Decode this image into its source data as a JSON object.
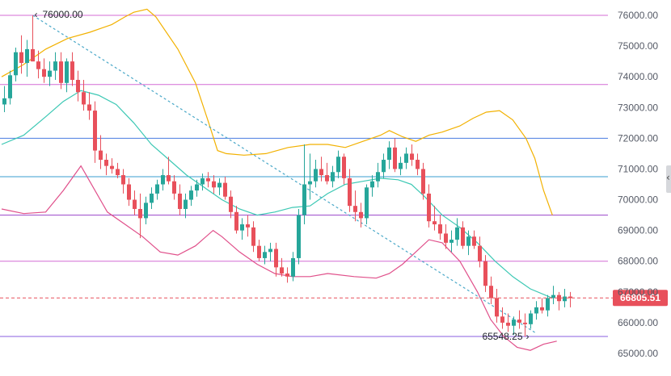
{
  "chart_data": {
    "type": "candlestick",
    "y_axis": {
      "position": "right",
      "ylim": [
        64700,
        76300
      ],
      "ticks": [
        65000,
        66000,
        67000,
        68000,
        69000,
        70000,
        71000,
        72000,
        73000,
        74000,
        75000,
        76000
      ],
      "tick_labels": [
        "65000.00",
        "66000.00",
        "67000.00",
        "68000.00",
        "69000.00",
        "70000.00",
        "71000.00",
        "72000.00",
        "73000.00",
        "74000.00",
        "75000.00",
        "76000.00"
      ]
    },
    "horizontal_levels": [
      {
        "value": 76000,
        "color": "#d46bd6"
      },
      {
        "value": 73750,
        "color": "#d46bd6"
      },
      {
        "value": 72000,
        "color": "#4a7be0"
      },
      {
        "value": 70750,
        "color": "#3a9ed0"
      },
      {
        "value": 69500,
        "color": "#9a45c9"
      },
      {
        "value": 68000,
        "color": "#d46bd6"
      },
      {
        "value": 65550,
        "color": "#8a5ee0"
      }
    ],
    "current_price": {
      "value": 66805.51,
      "label": "66805.51",
      "color": "#e8505b"
    },
    "annotations": [
      {
        "label": "76000.00",
        "value": 76000,
        "candle_index": 5
      },
      {
        "label": "65548.25",
        "value": 65548.25,
        "candle_index": 93
      }
    ],
    "trendline": {
      "from_index": 5,
      "from_value": 76000,
      "to_index": 94,
      "to_value": 65650,
      "color": "#4aa8c8"
    },
    "candle_colors": {
      "up": "#26a69a",
      "down": "#e8505b"
    },
    "candles": [
      [
        73100,
        73700,
        72850,
        73300
      ],
      [
        73300,
        74200,
        73100,
        74050
      ],
      [
        74050,
        74950,
        73850,
        74800
      ],
      [
        74800,
        75350,
        74100,
        74450
      ],
      [
        74450,
        75200,
        74000,
        74900
      ],
      [
        74900,
        76000,
        74500,
        74500
      ],
      [
        74500,
        74850,
        73950,
        74250
      ],
      [
        74250,
        74600,
        73800,
        74000
      ],
      [
        74000,
        74500,
        73700,
        74200
      ],
      [
        74200,
        74800,
        73900,
        74500
      ],
      [
        74500,
        74800,
        73600,
        73800
      ],
      [
        73800,
        74600,
        73500,
        74500
      ],
      [
        74500,
        74800,
        73700,
        73900
      ],
      [
        73900,
        74200,
        73200,
        73500
      ],
      [
        73500,
        73900,
        72900,
        73100
      ],
      [
        73100,
        73500,
        72600,
        72900
      ],
      [
        72900,
        73200,
        71200,
        71600
      ],
      [
        71600,
        72100,
        71000,
        71300
      ],
      [
        71300,
        71500,
        70800,
        71100
      ],
      [
        71100,
        71350,
        70850,
        71000
      ],
      [
        71000,
        71200,
        70700,
        70800
      ],
      [
        70800,
        71000,
        70200,
        70500
      ],
      [
        70500,
        70700,
        69800,
        70000
      ],
      [
        70000,
        70300,
        69500,
        69700
      ],
      [
        69700,
        70200,
        68750,
        69400
      ],
      [
        69400,
        70100,
        69200,
        69900
      ],
      [
        69900,
        70400,
        69700,
        70200
      ],
      [
        70200,
        70650,
        70000,
        70500
      ],
      [
        70500,
        71000,
        70300,
        70800
      ],
      [
        70800,
        71400,
        70500,
        70600
      ],
      [
        70600,
        70800,
        70000,
        70200
      ],
      [
        70200,
        70500,
        69500,
        69700
      ],
      [
        69700,
        70200,
        69400,
        70000
      ],
      [
        70000,
        70450,
        69800,
        70300
      ],
      [
        70300,
        70650,
        70100,
        70500
      ],
      [
        70500,
        70850,
        70300,
        70700
      ],
      [
        70700,
        70900,
        70400,
        70600
      ],
      [
        70600,
        70800,
        70200,
        70400
      ],
      [
        70400,
        70700,
        70150,
        70550
      ],
      [
        70550,
        70750,
        70000,
        70100
      ],
      [
        70100,
        70300,
        69400,
        69600
      ],
      [
        69600,
        69800,
        68900,
        69000
      ],
      [
        69000,
        69400,
        68700,
        69200
      ],
      [
        69200,
        69500,
        68800,
        69100
      ],
      [
        69100,
        69300,
        68300,
        68500
      ],
      [
        68500,
        68700,
        68000,
        68100
      ],
      [
        68100,
        68500,
        67900,
        68300
      ],
      [
        68300,
        68600,
        68000,
        68400
      ],
      [
        68400,
        68600,
        67500,
        67800
      ],
      [
        67800,
        68100,
        67500,
        67600
      ],
      [
        67600,
        67800,
        67300,
        67500
      ],
      [
        67500,
        68300,
        67350,
        68100
      ],
      [
        68100,
        69700,
        67900,
        69500
      ],
      [
        69500,
        71800,
        69200,
        70500
      ],
      [
        70500,
        71500,
        70000,
        70600
      ],
      [
        70600,
        71300,
        70400,
        71000
      ],
      [
        71000,
        71400,
        70600,
        70800
      ],
      [
        70800,
        71200,
        70500,
        70600
      ],
      [
        70600,
        71100,
        70400,
        70900
      ],
      [
        70900,
        71600,
        70700,
        71400
      ],
      [
        71400,
        71500,
        70500,
        70700
      ],
      [
        70700,
        71000,
        69600,
        69800
      ],
      [
        69800,
        70300,
        69300,
        69600
      ],
      [
        69600,
        69900,
        69100,
        69400
      ],
      [
        69400,
        70500,
        69200,
        70400
      ],
      [
        70400,
        70800,
        70100,
        70600
      ],
      [
        70600,
        71200,
        70400,
        70900
      ],
      [
        70900,
        71500,
        70700,
        71300
      ],
      [
        71300,
        71900,
        71000,
        71700
      ],
      [
        71700,
        72000,
        70900,
        71000
      ],
      [
        71000,
        71400,
        70800,
        71200
      ],
      [
        71200,
        71700,
        71000,
        71500
      ],
      [
        71500,
        71800,
        71100,
        71300
      ],
      [
        71300,
        71500,
        70800,
        71000
      ],
      [
        71000,
        71200,
        70000,
        70200
      ],
      [
        70200,
        70500,
        69100,
        69300
      ],
      [
        69300,
        69800,
        69000,
        69200
      ],
      [
        69200,
        69500,
        68700,
        68900
      ],
      [
        68900,
        69200,
        68400,
        68600
      ],
      [
        68600,
        69000,
        68300,
        68700
      ],
      [
        68700,
        69400,
        68500,
        69100
      ],
      [
        69100,
        69300,
        68400,
        68500
      ],
      [
        68500,
        69000,
        68200,
        68800
      ],
      [
        68800,
        69000,
        68400,
        68500
      ],
      [
        68500,
        68800,
        67800,
        68000
      ],
      [
        68000,
        68200,
        67000,
        67200
      ],
      [
        67200,
        67500,
        66600,
        66800
      ],
      [
        66800,
        67100,
        66000,
        66200
      ],
      [
        66200,
        66500,
        65800,
        66000
      ],
      [
        66000,
        66300,
        65700,
        65900
      ],
      [
        65900,
        66200,
        65600,
        66100
      ],
      [
        66100,
        66400,
        65800,
        66000
      ],
      [
        66000,
        66300,
        65550,
        65950
      ],
      [
        65950,
        66400,
        65800,
        66300
      ],
      [
        66300,
        66700,
        66100,
        66500
      ],
      [
        66500,
        66800,
        66300,
        66400
      ],
      [
        66400,
        66900,
        66200,
        66800
      ],
      [
        66800,
        67200,
        66600,
        66900
      ],
      [
        66900,
        67000,
        66400,
        66700
      ],
      [
        66700,
        67100,
        66500,
        66850
      ],
      [
        66850,
        67000,
        66500,
        66800
      ]
    ],
    "bollinger": {
      "upper_color": "#f2b100",
      "middle_color": "#3cc8b4",
      "lower_color": "#e04f8a",
      "upper": [
        [
          0,
          74000
        ],
        [
          5,
          74400
        ],
        [
          10,
          74900
        ],
        [
          15,
          75250
        ],
        [
          20,
          75450
        ],
        [
          25,
          75700
        ],
        [
          28,
          75950
        ],
        [
          30,
          76100
        ],
        [
          33,
          76200
        ],
        [
          35,
          75950
        ],
        [
          40,
          74900
        ],
        [
          44,
          73800
        ],
        [
          47,
          72500
        ],
        [
          49,
          71600
        ],
        [
          51,
          71500
        ],
        [
          55,
          71450
        ],
        [
          60,
          71500
        ],
        [
          65,
          71700
        ],
        [
          70,
          71800
        ],
        [
          74,
          71800
        ],
        [
          78,
          71700
        ],
        [
          82,
          71900
        ],
        [
          86,
          72100
        ],
        [
          88,
          72250
        ],
        [
          91,
          72050
        ],
        [
          94,
          71900
        ],
        [
          97,
          72100
        ],
        [
          100,
          72200
        ],
        [
          104,
          72400
        ],
        [
          107,
          72650
        ],
        [
          110,
          72850
        ],
        [
          113,
          72900
        ],
        [
          116,
          72600
        ],
        [
          119,
          72000
        ],
        [
          121,
          71350
        ],
        [
          123,
          70300
        ],
        [
          125,
          69500
        ]
      ],
      "middle": [
        [
          0,
          71800
        ],
        [
          5,
          72100
        ],
        [
          10,
          72700
        ],
        [
          14,
          73200
        ],
        [
          18,
          73550
        ],
        [
          22,
          73400
        ],
        [
          26,
          73100
        ],
        [
          30,
          72500
        ],
        [
          34,
          71800
        ],
        [
          38,
          71300
        ],
        [
          42,
          70800
        ],
        [
          46,
          70400
        ],
        [
          50,
          70000
        ],
        [
          54,
          69700
        ],
        [
          58,
          69500
        ],
        [
          62,
          69600
        ],
        [
          66,
          69750
        ],
        [
          70,
          69800
        ],
        [
          74,
          70200
        ],
        [
          78,
          70500
        ],
        [
          82,
          70600
        ],
        [
          86,
          70700
        ],
        [
          90,
          70650
        ],
        [
          93,
          70500
        ],
        [
          96,
          70100
        ],
        [
          100,
          69500
        ],
        [
          104,
          69100
        ],
        [
          108,
          68600
        ],
        [
          112,
          68000
        ],
        [
          116,
          67500
        ],
        [
          120,
          67100
        ],
        [
          125,
          66800
        ]
      ],
      "lower": [
        [
          0,
          69700
        ],
        [
          5,
          69550
        ],
        [
          10,
          69600
        ],
        [
          14,
          70300
        ],
        [
          18,
          71100
        ],
        [
          20,
          70600
        ],
        [
          24,
          69600
        ],
        [
          28,
          69200
        ],
        [
          32,
          68800
        ],
        [
          36,
          68300
        ],
        [
          40,
          68200
        ],
        [
          44,
          68500
        ],
        [
          48,
          69000
        ],
        [
          50,
          68800
        ],
        [
          54,
          68300
        ],
        [
          58,
          67900
        ],
        [
          62,
          67600
        ],
        [
          66,
          67500
        ],
        [
          70,
          67500
        ],
        [
          74,
          67600
        ],
        [
          80,
          67500
        ],
        [
          85,
          67450
        ],
        [
          88,
          67600
        ],
        [
          91,
          67900
        ],
        [
          94,
          68300
        ],
        [
          97,
          68700
        ],
        [
          100,
          68600
        ],
        [
          104,
          68000
        ],
        [
          108,
          67000
        ],
        [
          111,
          66100
        ],
        [
          114,
          65550
        ],
        [
          117,
          65200
        ],
        [
          120,
          65100
        ],
        [
          123,
          65300
        ],
        [
          126,
          65400
        ]
      ]
    }
  }
}
